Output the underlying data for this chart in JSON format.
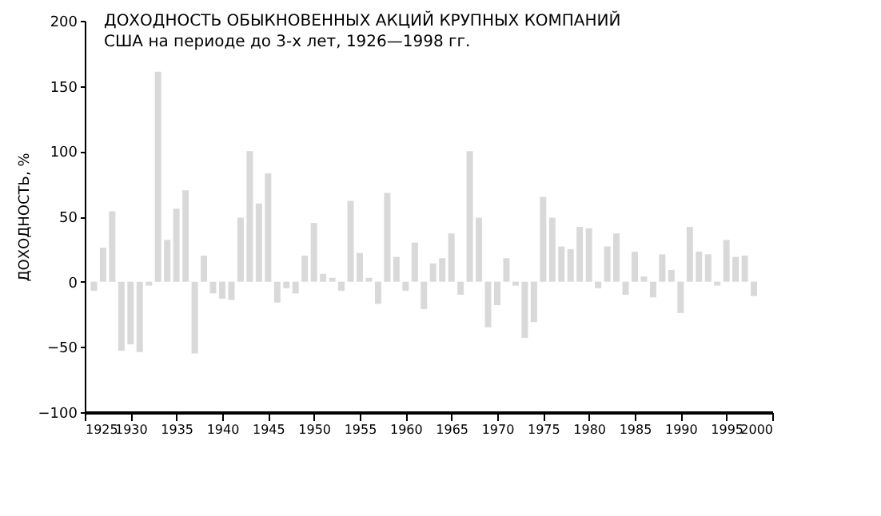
{
  "chart_data": {
    "type": "bar",
    "title": "ДОХОДНОСТЬ ОБЫКНОВЕННЫХ АКЦИЙ КРУПНЫХ КОМПАНИЙ",
    "subtitle": "США на периоде до 3-х лет, 1926—1998 гг.",
    "ylabel": "ДОХОДНОСТЬ, %",
    "x": [
      1926,
      1927,
      1928,
      1929,
      1930,
      1931,
      1932,
      1933,
      1934,
      1935,
      1936,
      1937,
      1938,
      1939,
      1940,
      1941,
      1942,
      1943,
      1944,
      1945,
      1946,
      1947,
      1948,
      1949,
      1950,
      1951,
      1952,
      1953,
      1954,
      1955,
      1956,
      1957,
      1958,
      1959,
      1960,
      1961,
      1962,
      1963,
      1964,
      1965,
      1966,
      1967,
      1968,
      1969,
      1970,
      1971,
      1972,
      1973,
      1974,
      1975,
      1976,
      1977,
      1978,
      1979,
      1980,
      1981,
      1982,
      1983,
      1984,
      1985,
      1986,
      1987,
      1988,
      1989,
      1990,
      1991,
      1992,
      1993,
      1994,
      1995,
      1996,
      1997,
      1998
    ],
    "values": [
      -7,
      26,
      54,
      -53,
      -48,
      -54,
      -3,
      161,
      32,
      56,
      70,
      -55,
      20,
      -9,
      -13,
      -14,
      49,
      100,
      60,
      83,
      -16,
      -5,
      -9,
      20,
      45,
      6,
      3,
      -7,
      62,
      22,
      3,
      -17,
      68,
      19,
      -7,
      30,
      -21,
      14,
      18,
      37,
      -10,
      100,
      49,
      -35,
      -18,
      18,
      -3,
      -43,
      -31,
      65,
      49,
      27,
      25,
      42,
      41,
      -5,
      27,
      37,
      -10,
      23,
      4,
      -12,
      21,
      9,
      -24,
      42,
      23,
      21,
      -3,
      32,
      19,
      20,
      -11
    ],
    "color": "#d9d9d9",
    "xlim": [
      1925,
      2000
    ],
    "xticks": [
      1925,
      1930,
      1935,
      1940,
      1945,
      1950,
      1955,
      1960,
      1965,
      1970,
      1975,
      1980,
      1985,
      1990,
      1995,
      2000
    ],
    "ylim": [
      -100,
      200
    ],
    "yticks": [
      -100,
      -50,
      0,
      50,
      100,
      150,
      200
    ],
    "grid": false
  }
}
